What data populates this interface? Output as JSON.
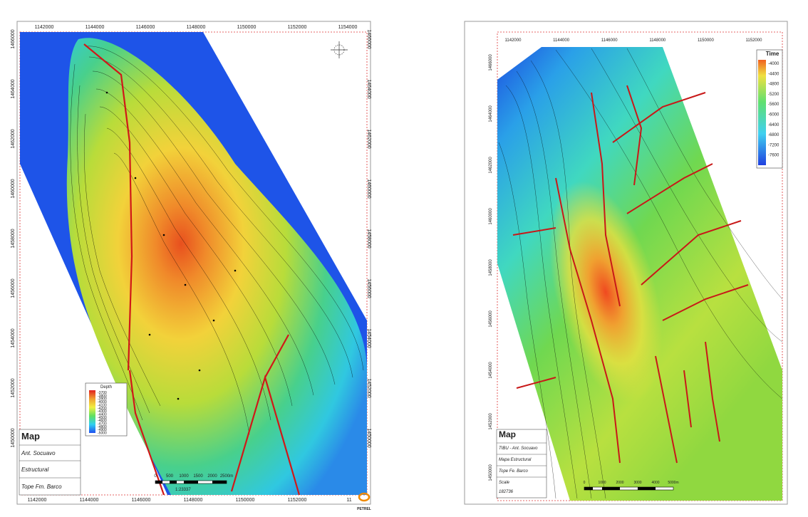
{
  "left_map": {
    "x_ticks_top": [
      1142000,
      1144000,
      1146000,
      1148000,
      1150000,
      1152000,
      1154000
    ],
    "x_ticks_bottom": [
      1142000,
      1144000,
      1146000,
      1148000,
      1150000,
      1152000,
      "11"
    ],
    "y_ticks": [
      1466000,
      1464000,
      1462000,
      1460000,
      1458000,
      1456000,
      1454000,
      1452000,
      1450000
    ],
    "legend": {
      "title": "Depth",
      "labels": [
        -3700,
        -3800,
        -3900,
        -4000,
        -4100,
        -4200,
        -4300,
        -4400,
        -4500,
        -4600,
        -4700,
        -4800,
        -4900,
        -5000
      ]
    },
    "title_block": [
      "Map",
      "Ant. Socuavo",
      "Estructural",
      "Tope Fm. Barco"
    ],
    "scale_labels": [
      0,
      500,
      1000,
      1500,
      2000,
      "2500m"
    ],
    "scale_ratio": "1:23337",
    "logo": "PETREL"
  },
  "right_map": {
    "x_ticks_top": [
      1142000,
      1144000,
      1146000,
      1148000,
      1150000,
      1152000
    ],
    "y_ticks": [
      1466000,
      1464000,
      1462000,
      1460000,
      1458000,
      1456000,
      1454000,
      1452000,
      1450000
    ],
    "legend": {
      "title": "Time",
      "labels": [
        -4000,
        -4400,
        -4800,
        -5200,
        -5600,
        -6000,
        -6400,
        -6800,
        -7200,
        -7600
      ]
    },
    "title_block": [
      "Map",
      "TIBU - Ant. Socuavo",
      "Mapa Estructural",
      "Tope Fe. Barco",
      "Scale",
      "182736"
    ],
    "scale_labels": [
      0,
      1000,
      2000,
      3000,
      4000,
      "5000m"
    ]
  }
}
